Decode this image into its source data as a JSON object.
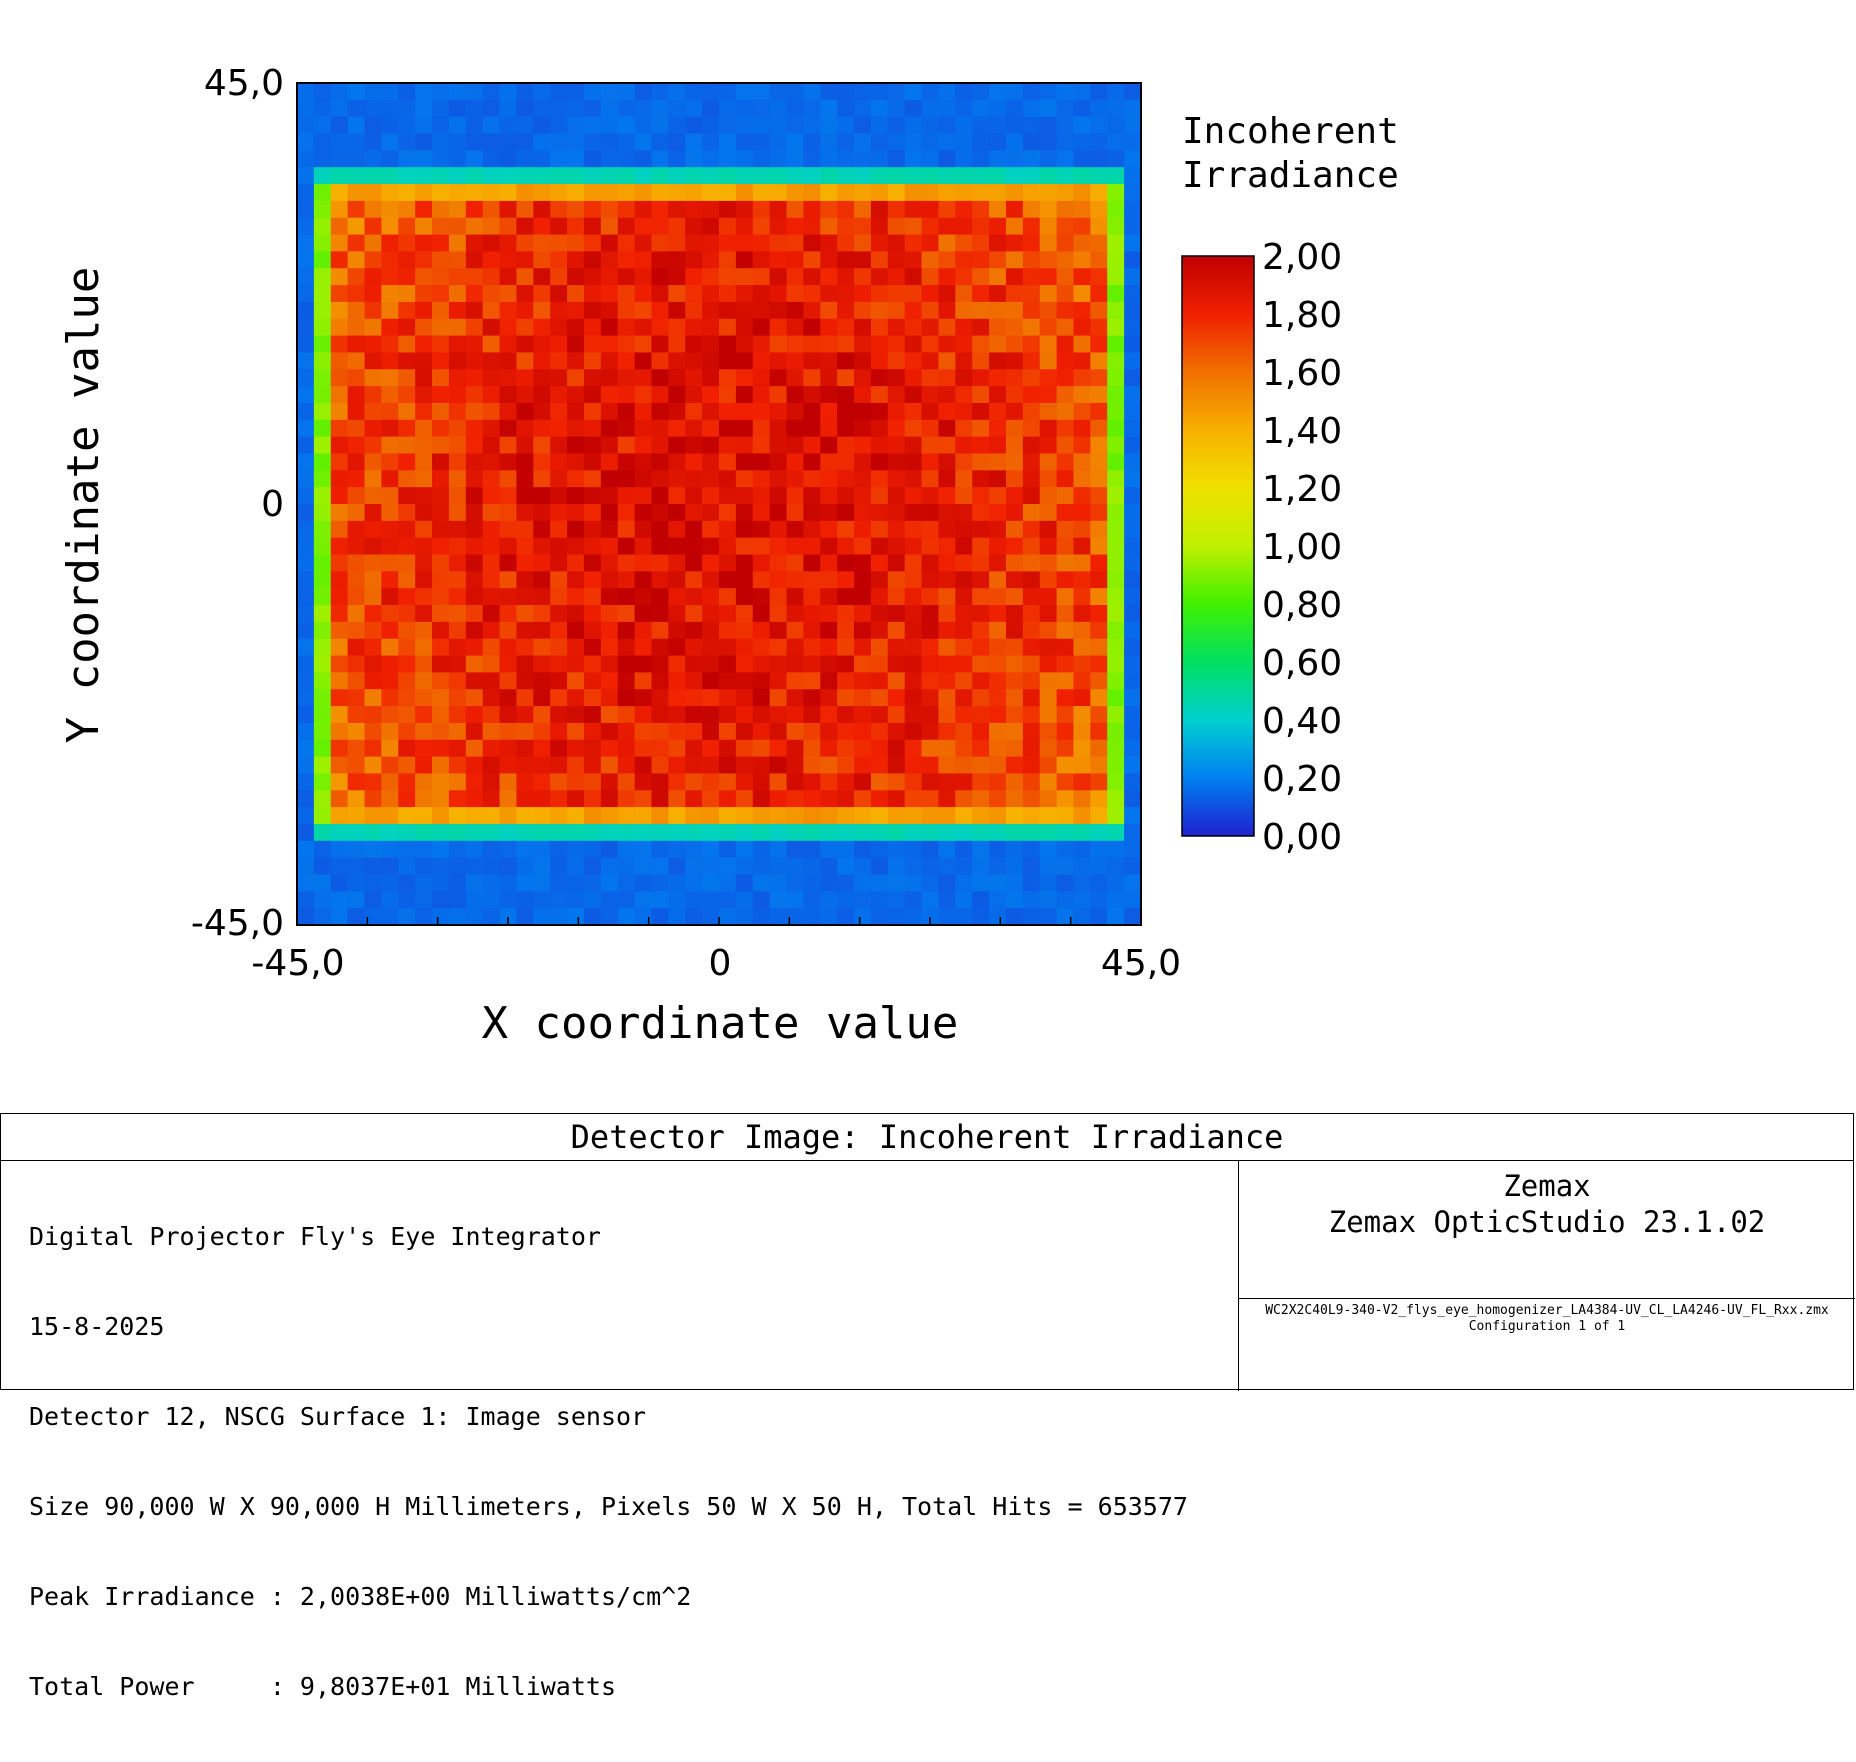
{
  "chart_data": {
    "type": "heatmap",
    "title": "Detector Image: Incoherent Irradiance",
    "xlabel": "X coordinate value",
    "ylabel": "Y coordinate value",
    "xlim": [
      -45.0,
      45.0
    ],
    "ylim": [
      -45.0,
      45.0
    ],
    "x_ticks": [
      "-45,0",
      "0",
      "45,0"
    ],
    "y_ticks": [
      "45,0",
      "0",
      "-45,0"
    ],
    "grid": false,
    "pixels": [
      50,
      50
    ],
    "illuminated_region": {
      "x": [
        -43.2,
        43.2
      ],
      "y": [
        -34.2,
        34.2
      ]
    },
    "level_background": 0.15,
    "level_edge_band": 0.45,
    "level_edge_column": 0.9,
    "level_peak": 1.9,
    "colorbar": {
      "title": "Incoherent Irradiance",
      "range": [
        0.0,
        2.0
      ],
      "ticks": [
        "2,00",
        "1,80",
        "1,60",
        "1,40",
        "1,20",
        "1,00",
        "0,80",
        "0,60",
        "0,40",
        "0,20",
        "0,00"
      ],
      "colors": [
        "#2020d0",
        "#0080f0",
        "#00d0d0",
        "#00e060",
        "#40f000",
        "#c0f000",
        "#f0e000",
        "#f8b000",
        "#f07000",
        "#f02000",
        "#c00000"
      ]
    }
  },
  "info": {
    "title": "Detector Image: Incoherent Irradiance",
    "lines": [
      "Digital Projector Fly's Eye Integrator",
      "15-8-2025",
      "Detector 12, NSCG Surface 1: Image sensor",
      "Size 90,000 W X 90,000 H Millimeters, Pixels 50 W X 50 H, Total Hits = 653577",
      "Peak Irradiance : 2,0038E+00 Milliwatts/cm^2",
      "Total Power     : 9,8037E+01 Milliwatts"
    ],
    "vendor": "Zemax",
    "product": "Zemax OpticStudio 23.1.02",
    "file": "WC2X2C40L9-340-V2_flys_eye_homogenizer_LA4384-UV_CL_LA4246-UV_FL_Rxx.zmx",
    "config": "Configuration 1 of 1"
  }
}
